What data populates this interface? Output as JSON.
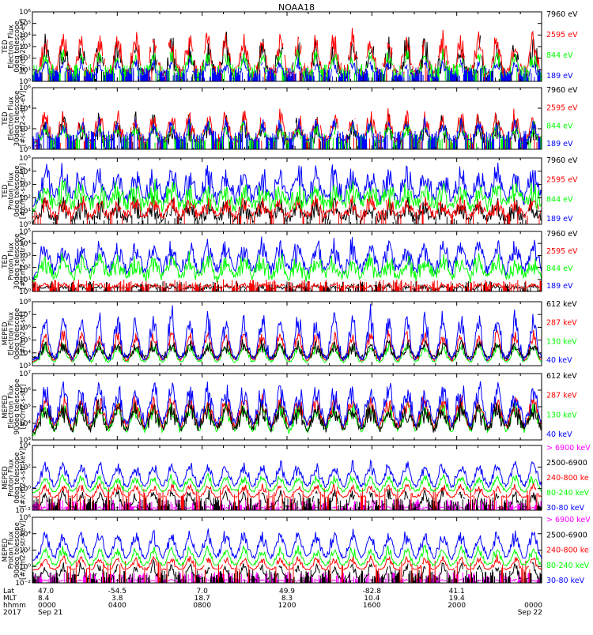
{
  "title": "NOAA18",
  "colors": {
    "black": "#000000",
    "red": "#ff0000",
    "green": "#00ff00",
    "blue": "#0000ff",
    "magenta": "#ff00ff"
  },
  "footer": {
    "row_labels": [
      "Lat",
      "MLT",
      "hhmm",
      "2017"
    ],
    "columns": [
      {
        "lat": "47.0",
        "mlt": "8.4",
        "hhmm": "0000",
        "date": "Sep 21"
      },
      {
        "lat": "-54.5",
        "mlt": "3.8",
        "hhmm": "0400",
        "date": ""
      },
      {
        "lat": "7.0",
        "mlt": "18.7",
        "hhmm": "0800",
        "date": ""
      },
      {
        "lat": "49.9",
        "mlt": "8.3",
        "hhmm": "1200",
        "date": ""
      },
      {
        "lat": "-82.8",
        "mlt": "10.4",
        "hhmm": "1600",
        "date": ""
      },
      {
        "lat": "41.1",
        "mlt": "19.4",
        "hhmm": "2000",
        "date": ""
      },
      {
        "lat": "",
        "mlt": "",
        "hhmm": "0000",
        "date": "Sep 22"
      }
    ]
  },
  "chart_data": [
    {
      "type": "line",
      "ylabel": [
        "TED",
        "Electron Flux",
        "0deg telescope",
        "[#/cm2-s-str-eV]"
      ],
      "yticks": [
        "10⁰",
        "10¹",
        "10²",
        "10³",
        "10⁴",
        "10⁵",
        "10⁶"
      ],
      "ylim": [
        0,
        6
      ],
      "legend": [
        {
          "label": "7960 eV",
          "color": "#000000"
        },
        {
          "label": "2595 eV",
          "color": "#ff0000"
        },
        {
          "label": "844 eV",
          "color": "#00ff00"
        },
        {
          "label": "189 eV",
          "color": "#0000ff"
        }
      ]
    },
    {
      "type": "line",
      "ylabel": [
        "TED",
        "Electron Flux",
        "30deg telescope",
        "[#/cm2-s-str-eV]"
      ],
      "yticks": [
        "10⁰",
        "10²",
        "10⁴",
        "10⁶"
      ],
      "ylim": [
        0,
        6
      ],
      "legend": [
        {
          "label": "7960 eV",
          "color": "#000000"
        },
        {
          "label": "2595 eV",
          "color": "#ff0000"
        },
        {
          "label": "844 eV",
          "color": "#00ff00"
        },
        {
          "label": "189 eV",
          "color": "#0000ff"
        }
      ]
    },
    {
      "type": "line",
      "ylabel": [
        "TED",
        "Proton Flux",
        "0deg telescope",
        "[#/cm2-s-str-eV]"
      ],
      "yticks": [
        "10⁰",
        "10¹",
        "10²",
        "10³",
        "10⁴",
        "10⁵"
      ],
      "ylim": [
        0,
        5
      ],
      "legend": [
        {
          "label": "7960 eV",
          "color": "#000000"
        },
        {
          "label": "2595 eV",
          "color": "#ff0000"
        },
        {
          "label": "844 eV",
          "color": "#00ff00"
        },
        {
          "label": "189 eV",
          "color": "#0000ff"
        }
      ]
    },
    {
      "type": "line",
      "ylabel": [
        "TED",
        "Proton Flux",
        "30deg telescope",
        "[#/cm2-s-str-eV]"
      ],
      "yticks": [
        "10⁰",
        "10¹",
        "10²",
        "10³",
        "10⁴",
        "10⁵"
      ],
      "ylim": [
        0,
        5
      ],
      "legend": [
        {
          "label": "7960 eV",
          "color": "#000000"
        },
        {
          "label": "2595 eV",
          "color": "#ff0000"
        },
        {
          "label": "844 eV",
          "color": "#00ff00"
        },
        {
          "label": "189 eV",
          "color": "#0000ff"
        }
      ]
    },
    {
      "type": "line",
      "ylabel": [
        "MEPED",
        "Electron Flux",
        "0deg telescope",
        "[#/cm2-s-str]"
      ],
      "yticks": [
        "10³",
        "10⁴",
        "10⁵",
        "10⁶",
        "10⁷",
        "10⁸"
      ],
      "ylim": [
        3,
        8
      ],
      "legend": [
        {
          "label": "612 keV",
          "color": "#000000"
        },
        {
          "label": "287 keV",
          "color": "#ff0000"
        },
        {
          "label": "130 keV",
          "color": "#00ff00"
        },
        {
          "label": "40 keV",
          "color": "#0000ff"
        }
      ]
    },
    {
      "type": "line",
      "ylabel": [
        "MEPED",
        "Electron Flux",
        "90deg telescope",
        "[#/cm2-s-str]"
      ],
      "yticks": [
        "10³",
        "10⁴",
        "10⁵",
        "10⁶",
        "10⁷"
      ],
      "ylim": [
        3,
        7
      ],
      "legend": [
        {
          "label": "612 keV",
          "color": "#000000"
        },
        {
          "label": "287 keV",
          "color": "#ff0000"
        },
        {
          "label": "130 keV",
          "color": "#00ff00"
        },
        {
          "label": "40 keV",
          "color": "#0000ff"
        }
      ]
    },
    {
      "type": "line",
      "ylabel": [
        "MEPED",
        "Proton Flux",
        "0deg telescope",
        "[#/cm2-s-str-keV]"
      ],
      "yticks": [
        "10⁻²",
        "10⁰",
        "10²",
        "10⁴"
      ],
      "ylim": [
        -2,
        5
      ],
      "legend": [
        {
          "label": "> 6900 keV",
          "color": "#ff00ff"
        },
        {
          "label": "2500-6900",
          "color": "#000000"
        },
        {
          "label": "240-800 ke",
          "color": "#ff0000"
        },
        {
          "label": "80-240 keV",
          "color": "#00ff00"
        },
        {
          "label": "30-80 keV",
          "color": "#0000ff"
        }
      ]
    },
    {
      "type": "line",
      "ylabel": [
        "MEPED",
        "Proton Flux",
        "90deg telescope",
        "[#/cm2-s-str-keV]"
      ],
      "yticks": [
        "10⁻²",
        "10⁰",
        "10²",
        "10⁴",
        "10⁶"
      ],
      "ylim": [
        -2,
        6
      ],
      "legend": [
        {
          "label": "> 6900 keV",
          "color": "#ff00ff"
        },
        {
          "label": "2500-6900",
          "color": "#000000"
        },
        {
          "label": "240-800 ke",
          "color": "#ff0000"
        },
        {
          "label": "80-240 keV",
          "color": "#00ff00"
        },
        {
          "label": "30-80 keV",
          "color": "#0000ff"
        }
      ]
    }
  ]
}
